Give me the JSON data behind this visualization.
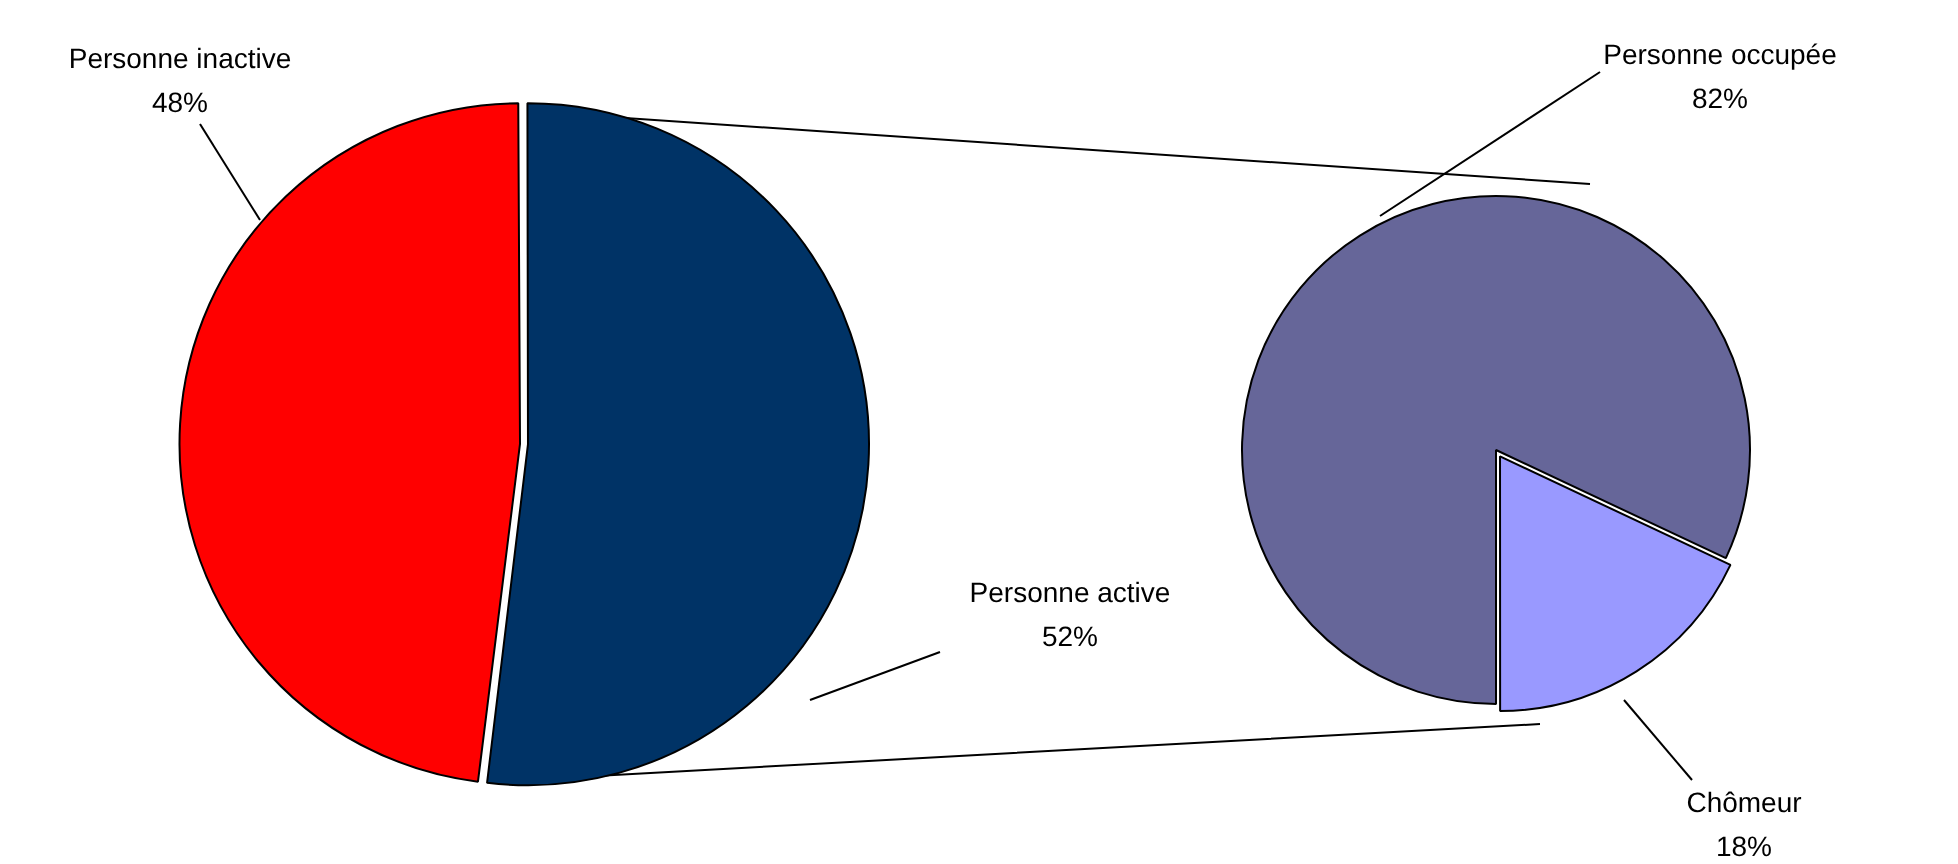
{
  "chart_data": [
    {
      "type": "pie",
      "categories": [
        "Personne inactive",
        "Personne active"
      ],
      "values": [
        48,
        52
      ],
      "colors": [
        "#ff0000",
        "#003366"
      ],
      "value_labels": [
        "48%",
        "52%"
      ]
    },
    {
      "type": "pie",
      "categories": [
        "Personne occupée",
        "Chômeur"
      ],
      "values": [
        82,
        18
      ],
      "colors": [
        "#666699",
        "#9999ff"
      ],
      "value_labels": [
        "82%",
        "18%"
      ]
    }
  ]
}
